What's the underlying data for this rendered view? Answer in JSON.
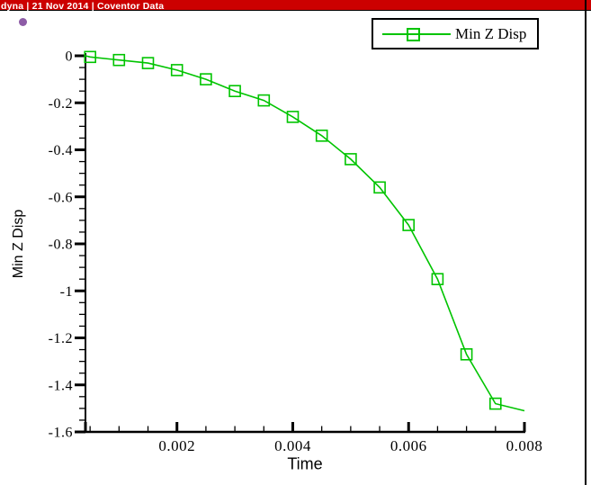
{
  "window": {
    "title_bar": {
      "text": "dyna | 21 Nov 2014 | Coventor Data",
      "bg_color": "#cc0000",
      "text_color": "#ffffff"
    },
    "marker_dot_color": "#8d5ca6"
  },
  "legend": {
    "label": "Min Z Disp",
    "line_color": "#00c400"
  },
  "chart_data": {
    "type": "line",
    "title": "",
    "xlabel": "Time",
    "ylabel": "Min Z Disp",
    "xlim": [
      0.00042,
      0.008
    ],
    "ylim": [
      -1.6,
      0
    ],
    "grid": false,
    "legend_position": "top-right",
    "x_major_ticks": [
      0.002,
      0.004,
      0.006,
      0.008
    ],
    "x_tick_labels": [
      "0.002",
      "0.004",
      "0.006",
      "0.008"
    ],
    "x_minor_step": 0.0005,
    "y_major_ticks": [
      0,
      -0.2,
      -0.4,
      -0.6,
      -0.8,
      -1,
      -1.2,
      -1.4,
      -1.6
    ],
    "y_tick_labels": [
      "0",
      "-0.2",
      "-0.4",
      "-0.6",
      "-0.8",
      "-1",
      "-1.2",
      "-1.4",
      "-1.6"
    ],
    "y_minor_step": 0.05,
    "series": [
      {
        "name": "Min Z Disp",
        "color": "#00c400",
        "marker": "open-square",
        "x": [
          0.00042,
          0.0005,
          0.001,
          0.0015,
          0.002,
          0.0025,
          0.003,
          0.0035,
          0.004,
          0.0045,
          0.005,
          0.0055,
          0.006,
          0.0065,
          0.007,
          0.0075,
          0.008
        ],
        "y": [
          0,
          -0.005,
          -0.018,
          -0.031,
          -0.061,
          -0.1,
          -0.15,
          -0.19,
          -0.26,
          -0.34,
          -0.44,
          -0.56,
          -0.72,
          -0.95,
          -1.27,
          -1.48,
          -1.51
        ],
        "marker_indices": [
          1,
          2,
          3,
          4,
          5,
          6,
          7,
          8,
          9,
          10,
          11,
          12,
          13,
          14,
          15
        ]
      }
    ]
  }
}
